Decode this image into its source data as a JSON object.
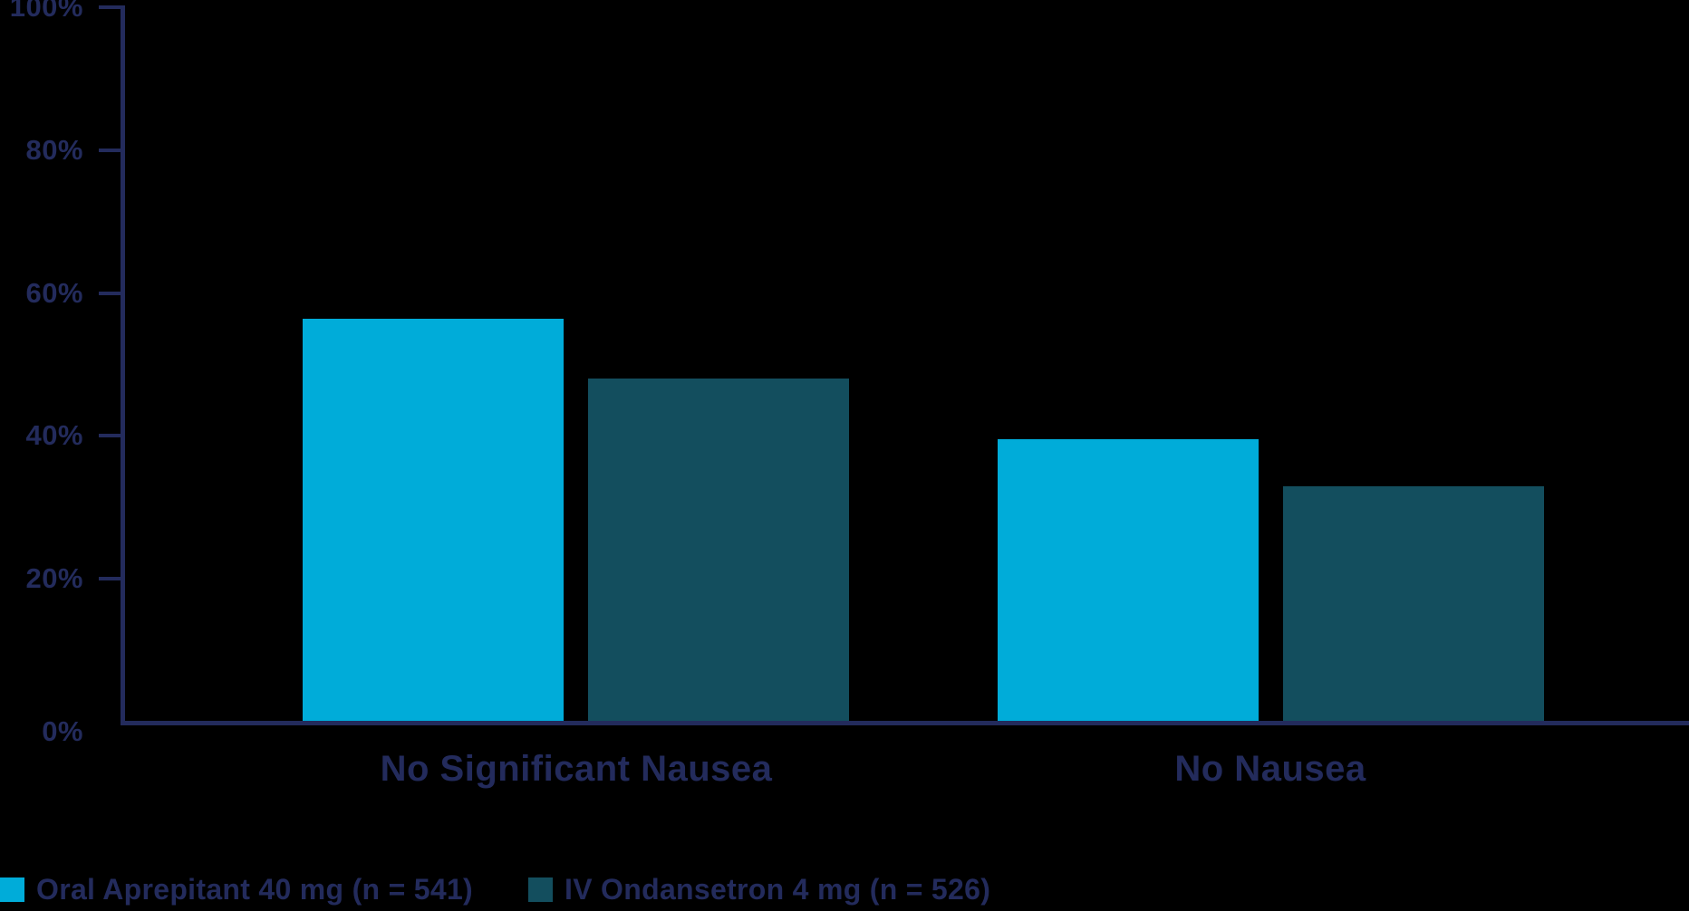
{
  "chart_data": {
    "type": "bar",
    "title": "",
    "categories": [
      "No Significant Nausea",
      "No Nausea"
    ],
    "series": [
      {
        "name": "Oral Aprepitant 40 mg (n = 541)",
        "color": "#00ACD9",
        "values": [
          56.4,
          39.6
        ]
      },
      {
        "name": "IV Ondansetron 4 mg (n = 526)",
        "color": "#134E5E",
        "values": [
          48,
          33
        ]
      }
    ],
    "y_axis": {
      "min": 0,
      "max": 100,
      "ticks": [
        0,
        20,
        40,
        60,
        80,
        100
      ],
      "suffix": "%"
    },
    "xlabel": "",
    "ylabel": "",
    "grid": false,
    "legend_position": "bottom-left",
    "colors": {
      "axis": "#232B5C",
      "text": "#232B5C",
      "background": "#000000"
    }
  }
}
